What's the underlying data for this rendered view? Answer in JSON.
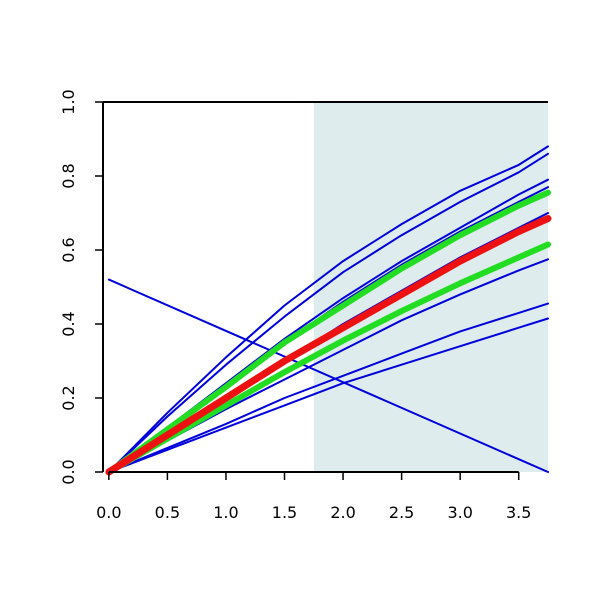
{
  "chart_data": {
    "type": "line",
    "title": "",
    "xlabel": "",
    "ylabel": "",
    "xlim": [
      -0.05,
      3.75
    ],
    "ylim": [
      0.0,
      1.0
    ],
    "x_ticks": [
      "0.0",
      "0.5",
      "1.0",
      "1.5",
      "2.0",
      "2.5",
      "3.0",
      "3.5"
    ],
    "y_ticks": [
      "0.0",
      "0.2",
      "0.4",
      "0.6",
      "0.8",
      "1.0"
    ],
    "shaded_region": {
      "x_from": 1.75,
      "x_to": 3.75,
      "color": "#dfeced"
    },
    "grid": false,
    "colors": {
      "blue": "#0000dd",
      "green": "#22dd22",
      "red": "#ee1111"
    },
    "series": [
      {
        "color": "blue",
        "width": 2,
        "x": [
          0,
          3.75
        ],
        "y": [
          0.52,
          0.0
        ]
      },
      {
        "color": "blue",
        "width": 2,
        "x": [
          0,
          0.5,
          1.0,
          1.5,
          2.0,
          2.5,
          3.0,
          3.5,
          3.75
        ],
        "y": [
          0,
          0.16,
          0.31,
          0.45,
          0.57,
          0.67,
          0.76,
          0.83,
          0.88
        ]
      },
      {
        "color": "blue",
        "width": 2,
        "x": [
          0,
          0.5,
          1.0,
          1.5,
          2.0,
          2.5,
          3.0,
          3.5,
          3.75
        ],
        "y": [
          0,
          0.15,
          0.29,
          0.42,
          0.54,
          0.64,
          0.73,
          0.81,
          0.86
        ]
      },
      {
        "color": "blue",
        "width": 2,
        "x": [
          0,
          0.5,
          1.0,
          1.5,
          2.0,
          2.5,
          3.0,
          3.5,
          3.75
        ],
        "y": [
          0,
          0.12,
          0.24,
          0.36,
          0.47,
          0.57,
          0.66,
          0.75,
          0.79
        ]
      },
      {
        "color": "blue",
        "width": 2,
        "x": [
          0,
          0.5,
          1.0,
          1.5,
          2.0,
          2.5,
          3.0,
          3.5,
          3.75
        ],
        "y": [
          0,
          0.115,
          0.23,
          0.35,
          0.46,
          0.56,
          0.65,
          0.73,
          0.77
        ]
      },
      {
        "color": "blue",
        "width": 2,
        "x": [
          0,
          0.5,
          1.0,
          1.5,
          2.0,
          2.5,
          3.0,
          3.5,
          3.75
        ],
        "y": [
          0,
          0.1,
          0.2,
          0.3,
          0.4,
          0.49,
          0.58,
          0.66,
          0.7
        ]
      },
      {
        "color": "blue",
        "width": 2,
        "x": [
          0,
          0.5,
          1.0,
          1.5,
          2.0,
          2.5,
          3.0,
          3.5,
          3.75
        ],
        "y": [
          0,
          0.085,
          0.17,
          0.25,
          0.33,
          0.41,
          0.48,
          0.545,
          0.575
        ]
      },
      {
        "color": "blue",
        "width": 2,
        "x": [
          0,
          0.5,
          1.0,
          1.5,
          2.0,
          2.5,
          3.0,
          3.5,
          3.75
        ],
        "y": [
          0,
          0.065,
          0.13,
          0.2,
          0.26,
          0.32,
          0.38,
          0.43,
          0.455
        ]
      },
      {
        "color": "blue",
        "width": 2,
        "x": [
          0,
          0.5,
          1.0,
          1.5,
          2.0,
          2.5,
          3.0,
          3.5,
          3.75
        ],
        "y": [
          0,
          0.06,
          0.12,
          0.18,
          0.24,
          0.29,
          0.34,
          0.39,
          0.415
        ]
      },
      {
        "color": "green",
        "width": 6,
        "x": [
          0,
          0.5,
          1.0,
          1.5,
          2.0,
          2.5,
          3.0,
          3.5,
          3.75
        ],
        "y": [
          0,
          0.115,
          0.23,
          0.35,
          0.45,
          0.55,
          0.64,
          0.72,
          0.755
        ]
      },
      {
        "color": "green",
        "width": 6,
        "x": [
          0,
          0.5,
          1.0,
          1.5,
          2.0,
          2.5,
          3.0,
          3.5,
          3.75
        ],
        "y": [
          0,
          0.09,
          0.18,
          0.27,
          0.355,
          0.435,
          0.51,
          0.58,
          0.615
        ]
      },
      {
        "color": "red",
        "width": 7,
        "x": [
          0,
          0.5,
          1.0,
          1.5,
          2.0,
          2.5,
          3.0,
          3.5,
          3.75
        ],
        "y": [
          0,
          0.1,
          0.2,
          0.3,
          0.39,
          0.48,
          0.57,
          0.65,
          0.685
        ]
      }
    ]
  }
}
